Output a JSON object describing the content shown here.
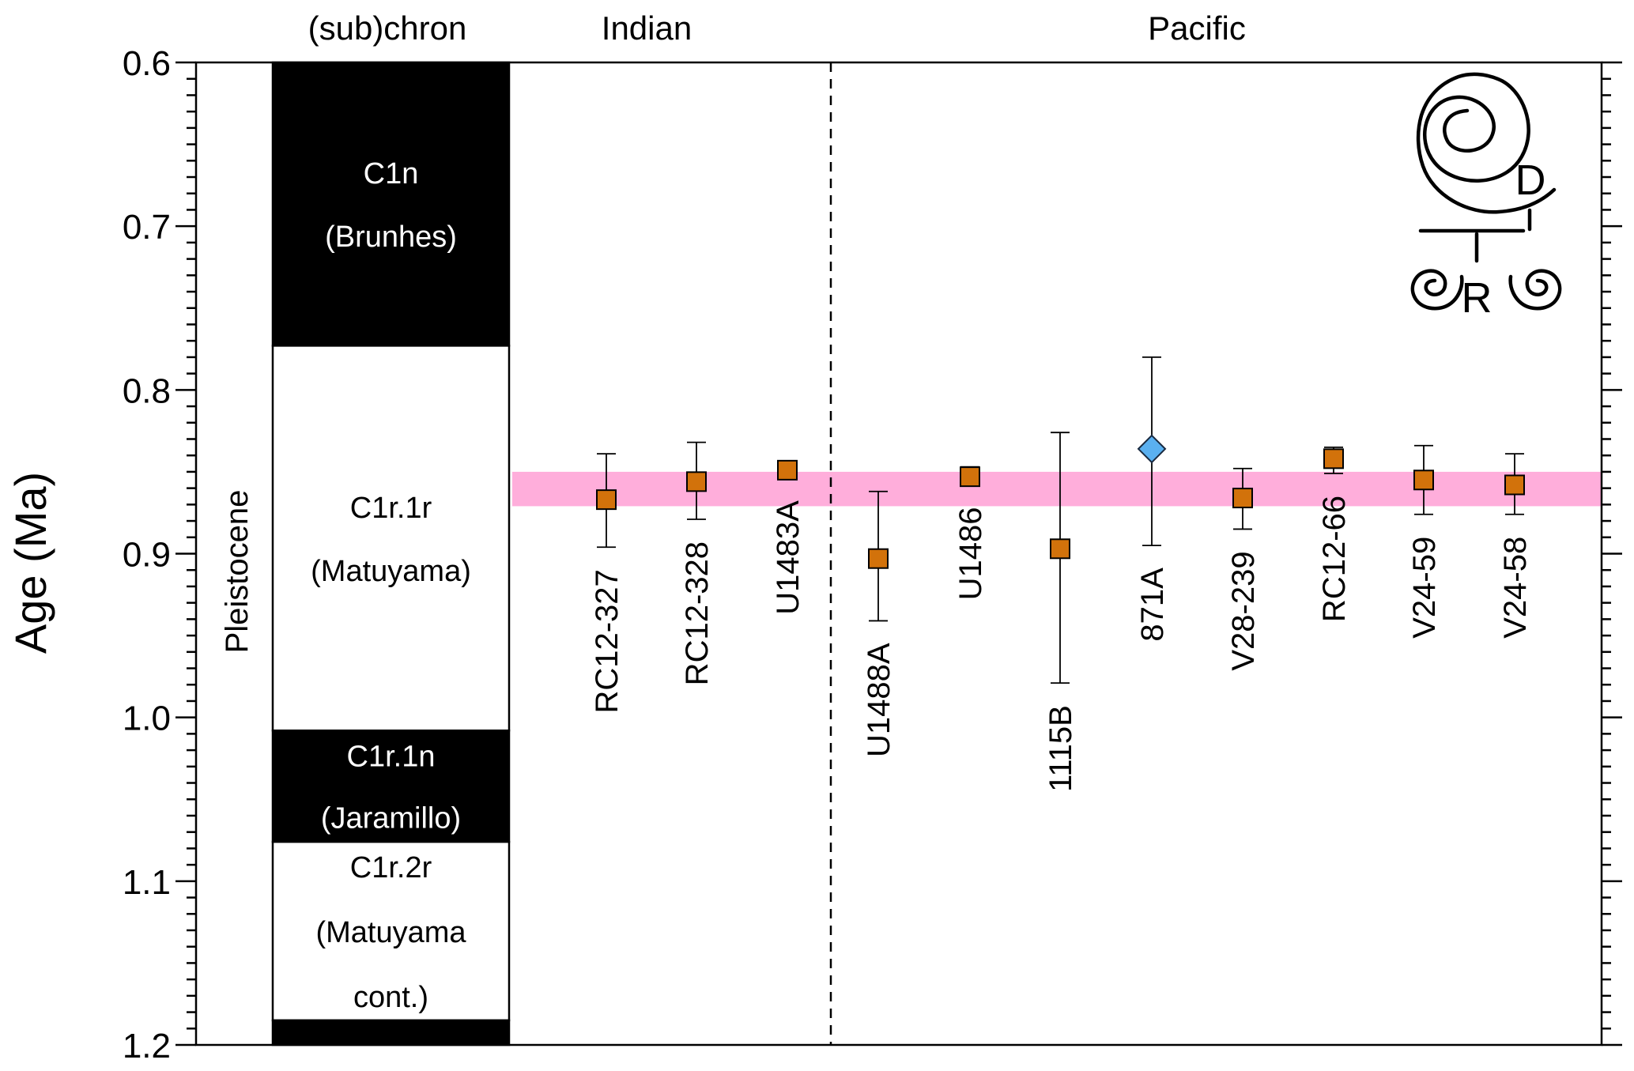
{
  "chart_data": {
    "type": "scatter",
    "ylabel": "Age (Ma)",
    "ylim": [
      0.6,
      1.2
    ],
    "y_inverted": true,
    "yticks": [
      "0.6",
      "0.7",
      "0.8",
      "0.9",
      "1.0",
      "1.1",
      "1.2"
    ],
    "epoch": "Pleistocene",
    "column_headers": {
      "chron": "(sub)chron",
      "indian": "Indian",
      "pacific": "Pacific"
    },
    "chrons": [
      {
        "name": "C1n",
        "alias": "(Brunhes)",
        "top": 0.6,
        "bottom": 0.773,
        "polarity": "normal"
      },
      {
        "name": "C1r.1r",
        "alias": "(Matuyama)",
        "top": 0.773,
        "bottom": 1.008,
        "polarity": "reversed"
      },
      {
        "name": "C1r.1n",
        "alias": "(Jaramillo)",
        "top": 1.008,
        "bottom": 1.076,
        "polarity": "normal"
      },
      {
        "name": "C1r.2r",
        "alias": "(Matuyama",
        "alias2": "cont.)",
        "top": 1.076,
        "bottom": 1.185,
        "polarity": "reversed"
      },
      {
        "name": "",
        "alias": "",
        "top": 1.185,
        "bottom": 1.2,
        "polarity": "normal"
      }
    ],
    "band": {
      "from": 0.85,
      "to": 0.871,
      "color": "#ffaedb"
    },
    "ocean_divider": "between U1483A and U1488A",
    "sites": [
      {
        "name": "RC12-327",
        "ocean": "Indian",
        "age": 0.867,
        "err_low": 0.896,
        "err_high": 0.839,
        "marker": "square",
        "color": "#d2720b"
      },
      {
        "name": "RC12-328",
        "ocean": "Indian",
        "age": 0.856,
        "err_low": 0.879,
        "err_high": 0.832,
        "marker": "square",
        "color": "#d2720b"
      },
      {
        "name": "U1483A",
        "ocean": "Indian",
        "age": 0.849,
        "err_low": 0.854,
        "err_high": 0.844,
        "marker": "square",
        "color": "#d2720b"
      },
      {
        "name": "U1488A",
        "ocean": "Pacific",
        "age": 0.903,
        "err_low": 0.941,
        "err_high": 0.862,
        "marker": "square",
        "color": "#d2720b"
      },
      {
        "name": "U1486",
        "ocean": "Pacific",
        "age": 0.853,
        "err_low": 0.858,
        "err_high": 0.847,
        "marker": "square",
        "color": "#d2720b"
      },
      {
        "name": "1115B",
        "ocean": "Pacific",
        "age": 0.897,
        "err_low": 0.979,
        "err_high": 0.826,
        "marker": "square",
        "color": "#d2720b"
      },
      {
        "name": "871A",
        "ocean": "Pacific",
        "age": 0.836,
        "err_low": 0.895,
        "err_high": 0.78,
        "marker": "diamond",
        "color": "#5ab0f0"
      },
      {
        "name": "V28-239",
        "ocean": "Pacific",
        "age": 0.866,
        "err_low": 0.885,
        "err_high": 0.848,
        "marker": "square",
        "color": "#d2720b"
      },
      {
        "name": "RC12-66",
        "ocean": "Pacific",
        "age": 0.842,
        "err_low": 0.851,
        "err_high": 0.835,
        "marker": "square",
        "color": "#d2720b"
      },
      {
        "name": "V24-59",
        "ocean": "Pacific",
        "age": 0.855,
        "err_low": 0.876,
        "err_high": 0.834,
        "marker": "square",
        "color": "#d2720b"
      },
      {
        "name": "V24-58",
        "ocean": "Pacific",
        "age": 0.858,
        "err_low": 0.876,
        "err_high": 0.839,
        "marker": "square",
        "color": "#d2720b"
      }
    ],
    "grid": false
  },
  "logo": {
    "letters": [
      "D",
      "R"
    ]
  }
}
